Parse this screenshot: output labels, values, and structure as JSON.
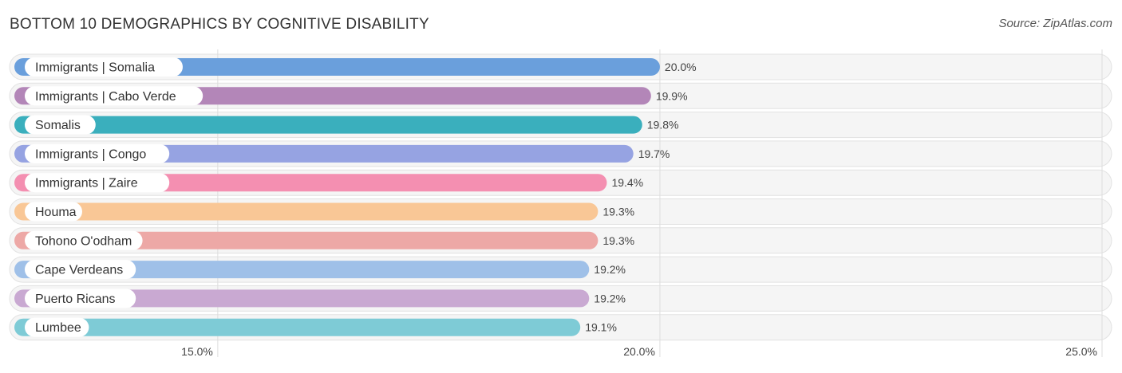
{
  "header": {
    "title": "BOTTOM 10 DEMOGRAPHICS BY COGNITIVE DISABILITY",
    "source": "Source: ZipAtlas.com"
  },
  "chart_data": {
    "type": "bar",
    "orientation": "horizontal",
    "title": "BOTTOM 10 DEMOGRAPHICS BY COGNITIVE DISABILITY",
    "categories": [
      "Immigrants | Somalia",
      "Immigrants | Cabo Verde",
      "Somalis",
      "Immigrants | Congo",
      "Immigrants | Zaire",
      "Houma",
      "Tohono O'odham",
      "Cape Verdeans",
      "Puerto Ricans",
      "Lumbee"
    ],
    "values": [
      20.0,
      19.9,
      19.8,
      19.7,
      19.4,
      19.3,
      19.3,
      19.2,
      19.2,
      19.1
    ],
    "value_labels": [
      "20.0%",
      "19.9%",
      "19.8%",
      "19.7%",
      "19.4%",
      "19.3%",
      "19.3%",
      "19.2%",
      "19.2%",
      "19.1%"
    ],
    "colors": [
      "#6a9fdc",
      "#b386b8",
      "#3aafbd",
      "#96a3e2",
      "#f48fb1",
      "#f9c796",
      "#eda8a6",
      "#9fc0e8",
      "#c9a9d2",
      "#7ecbd6"
    ],
    "xlim": [
      12.7,
      25.0
    ],
    "xticks": [
      15.0,
      20.0,
      25.0
    ],
    "xtick_labels": [
      "15.0%",
      "20.0%",
      "25.0%"
    ],
    "grid": true
  }
}
